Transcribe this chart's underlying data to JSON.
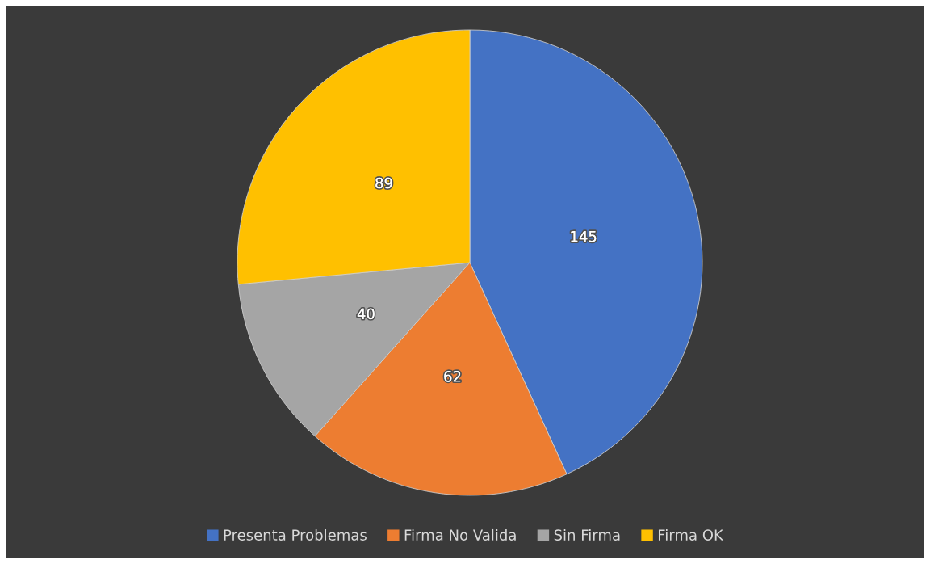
{
  "chart_data": {
    "type": "pie",
    "categories": [
      "Presenta Problemas",
      "Firma No Valida",
      "Sin Firma",
      "Firma OK"
    ],
    "values": [
      145,
      62,
      40,
      89
    ],
    "colors": [
      "#4472c4",
      "#ed7d31",
      "#a5a5a5",
      "#ffc000"
    ],
    "data_labels": true,
    "legend": "bottom"
  }
}
